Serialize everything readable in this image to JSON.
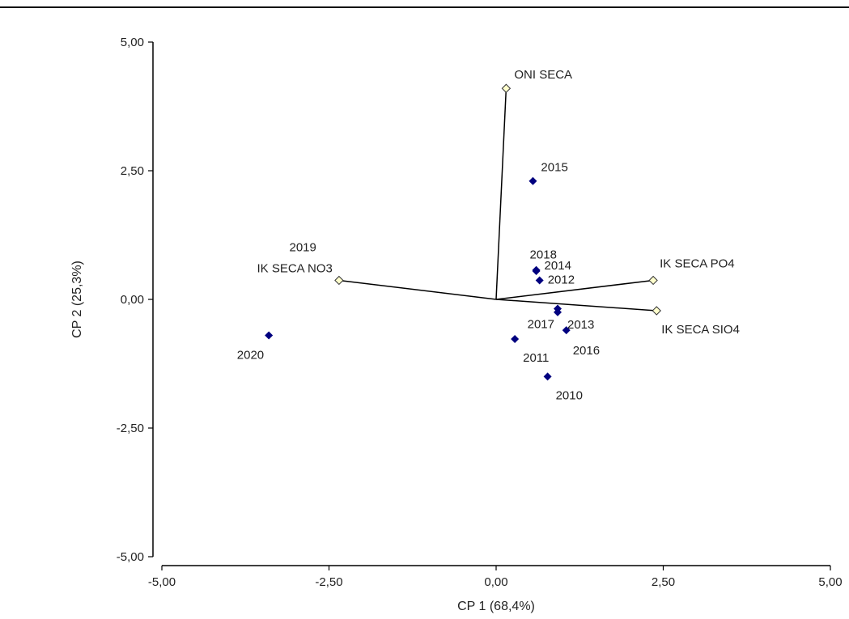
{
  "chart_data": {
    "type": "scatter",
    "xlabel": "CP 1 (68,4%)",
    "ylabel": "CP 2 (25,3%)",
    "xlim": [
      -5,
      5
    ],
    "ylim": [
      -5,
      5
    ],
    "x_ticks": [
      -5,
      -2.5,
      0,
      2.5,
      5
    ],
    "y_ticks": [
      -5,
      -2.5,
      0,
      2.5,
      5
    ],
    "x_tick_labels": [
      "-5,00",
      "-2,50",
      "0,00",
      "2,50",
      "5,00"
    ],
    "y_tick_labels": [
      "-5,00",
      "-2,50",
      "0,00",
      "2,50",
      "5,00"
    ],
    "grid": false,
    "colors": {
      "points": "#00007f",
      "vector_marker_fill": "#ffffcc",
      "vector_line": "#000000"
    },
    "points": [
      {
        "label": "2010",
        "x": 0.77,
        "y": -1.5
      },
      {
        "label": "2011",
        "x": 0.28,
        "y": -0.77
      },
      {
        "label": "2012",
        "x": 0.65,
        "y": 0.37
      },
      {
        "label": "2013",
        "x": 0.92,
        "y": -0.25
      },
      {
        "label": "2014",
        "x": 0.6,
        "y": 0.55
      },
      {
        "label": "2015",
        "x": 0.55,
        "y": 2.3
      },
      {
        "label": "2016",
        "x": 1.05,
        "y": -0.6
      },
      {
        "label": "2017",
        "x": 0.92,
        "y": -0.18
      },
      {
        "label": "2018",
        "x": 0.6,
        "y": 0.57
      },
      {
        "label": "2019",
        "x": -2.35,
        "y": 0.37
      },
      {
        "label": "2020",
        "x": -3.4,
        "y": -0.7
      }
    ],
    "vectors": [
      {
        "label": "ONI SECA",
        "x": 0.15,
        "y": 4.1
      },
      {
        "label": "IK SECA NO3",
        "x": -2.35,
        "y": 0.37
      },
      {
        "label": "IK SECA PO4",
        "x": 2.35,
        "y": 0.37
      },
      {
        "label": "IK SECA SIO4",
        "x": 2.4,
        "y": -0.22
      }
    ]
  }
}
